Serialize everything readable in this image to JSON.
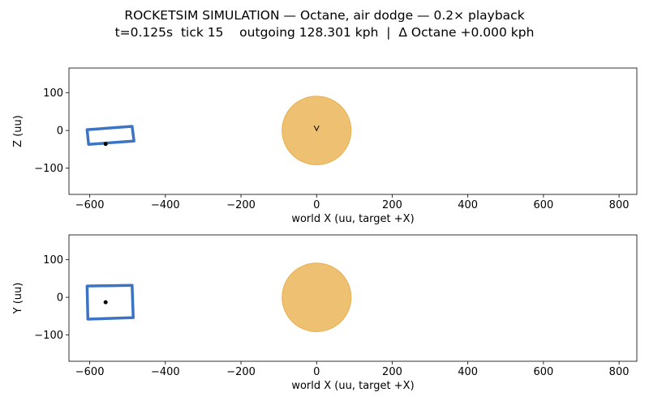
{
  "title": "ROCKETSIM SIMULATION — Octane, air dodge — 0.2× playback",
  "subtitle": "t=0.125s  tick 15    outgoing 128.301 kph  |  Δ Octane +0.000 kph",
  "chart_data": [
    {
      "type": "scatter",
      "xlabel": "world X (uu, target +X)",
      "ylabel": "Z (uu)",
      "xlim": [
        -655,
        847
      ],
      "ylim": [
        -170,
        166
      ],
      "xticks": [
        {
          "value": -600,
          "label": "−600"
        },
        {
          "value": -400,
          "label": "−400"
        },
        {
          "value": -200,
          "label": "−200"
        },
        0,
        200,
        400,
        600,
        800
      ],
      "yticks": [
        {
          "value": -100,
          "label": "−100"
        },
        0,
        100
      ],
      "ball": {
        "x": 0,
        "y": 0,
        "radius": 91.25,
        "color": "#e8b04f"
      },
      "hitbox": {
        "x": [
          -607,
          -488,
          -483,
          -603
        ],
        "y": [
          2,
          11,
          -28,
          -37
        ],
        "color": "#3a74c2"
      },
      "center": {
        "x": -558,
        "y": -36
      },
      "marker": {
        "x": 0,
        "y": 6
      }
    },
    {
      "type": "scatter",
      "xlabel": "world X (uu, target +X)",
      "ylabel": "Y (uu)",
      "xlim": [
        -655,
        847
      ],
      "ylim": [
        -170,
        166
      ],
      "xticks": [
        {
          "value": -600,
          "label": "−600"
        },
        {
          "value": -400,
          "label": "−400"
        },
        {
          "value": -200,
          "label": "−200"
        },
        0,
        200,
        400,
        600,
        800
      ],
      "yticks": [
        {
          "value": -100,
          "label": "−100"
        },
        0,
        100
      ],
      "ball": {
        "x": 0,
        "y": 0,
        "radius": 91.25,
        "color": "#e8b04f"
      },
      "hitbox": {
        "x": [
          -607,
          -488,
          -485,
          -605
        ],
        "y": [
          30,
          32,
          -54,
          -58
        ],
        "color": "#3a74c2"
      },
      "center": {
        "x": -558,
        "y": -13
      }
    }
  ]
}
